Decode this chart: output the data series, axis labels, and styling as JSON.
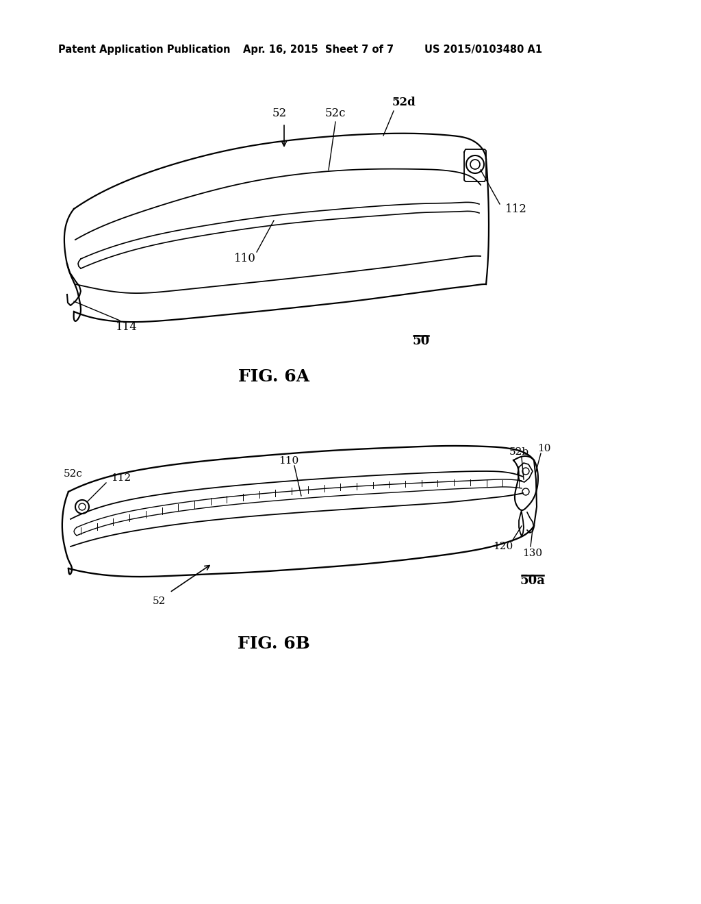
{
  "bg_color": "#ffffff",
  "header_left": "Patent Application Publication",
  "header_center": "Apr. 16, 2015  Sheet 7 of 7",
  "header_right": "US 2015/0103480 A1",
  "fig6a_title": "FIG. 6A",
  "fig6b_title": "FIG. 6B",
  "fig6a_ref": "50",
  "fig6b_ref": "50a",
  "text_color": "#000000",
  "line_color": "#000000",
  "header_fontsize": 10.5,
  "fig_title_fontsize": 18,
  "label_fontsize": 12
}
